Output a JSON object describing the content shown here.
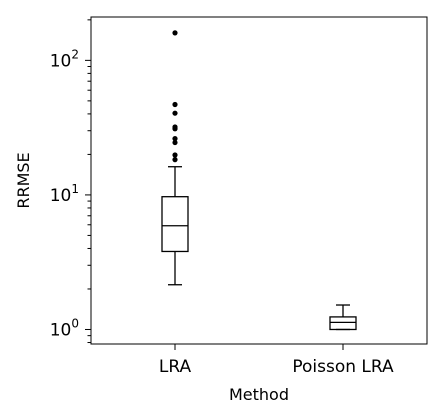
{
  "chart_data": {
    "type": "box",
    "xlabel": "Method",
    "ylabel": "RRMSE",
    "yscale": "log",
    "ylim": [
      0.78,
      210
    ],
    "yticks": [
      {
        "value": 1,
        "base": "10",
        "exp": "0"
      },
      {
        "value": 10,
        "base": "10",
        "exp": "1"
      },
      {
        "value": 100,
        "base": "10",
        "exp": "2"
      }
    ],
    "categories": [
      "LRA",
      "Poisson LRA"
    ],
    "boxes": [
      {
        "name": "LRA",
        "whisker_low": 2.15,
        "q1": 3.8,
        "median": 5.9,
        "q3": 9.7,
        "whisker_high": 16.2,
        "outliers": [
          18.3,
          19.8,
          24.5,
          26.2,
          31.0,
          32.0,
          40.5,
          47.0,
          160.0
        ]
      },
      {
        "name": "Poisson LRA",
        "whisker_low": 1.0,
        "q1": 1.0,
        "median": 1.13,
        "q3": 1.24,
        "whisker_high": 1.52,
        "outliers": []
      }
    ]
  }
}
